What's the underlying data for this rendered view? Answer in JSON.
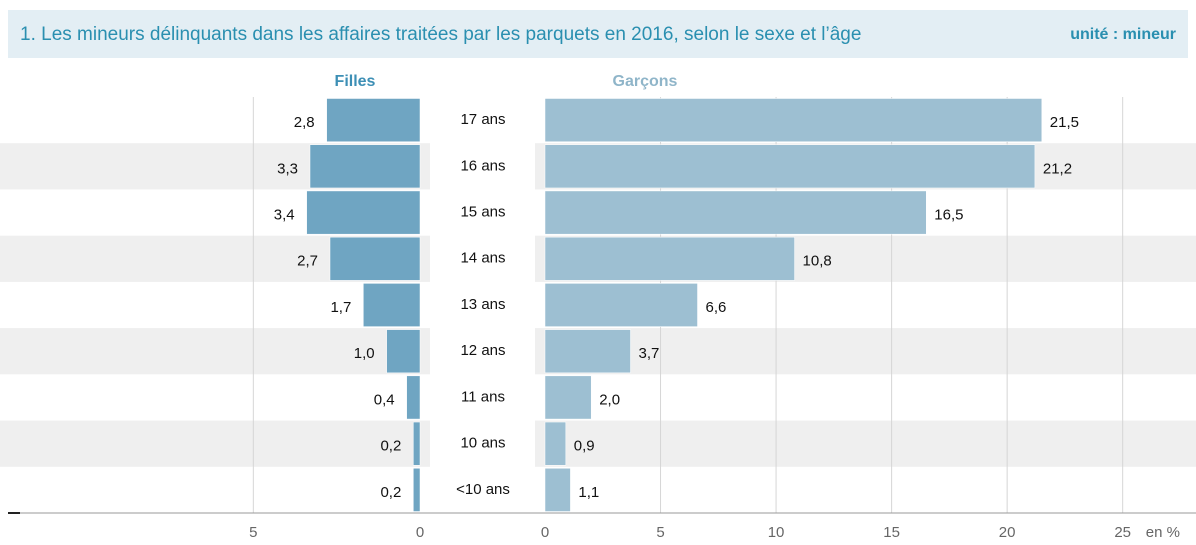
{
  "chart_data": {
    "type": "pyramid",
    "title": "1. Les mineurs délinquants dans les affaires traitées par les parquets en 2016, selon le sexe et l’âge",
    "unit_label": "unité : mineur",
    "x_unit": "en %",
    "categories": [
      "17 ans",
      "16 ans",
      "15 ans",
      "14 ans",
      "13 ans",
      "12 ans",
      "11 ans",
      "10 ans",
      "<10 ans"
    ],
    "series": [
      {
        "name": "Filles",
        "color": "#6fa5c2",
        "side": "left",
        "values": [
          2.8,
          3.3,
          3.4,
          2.7,
          1.7,
          1.0,
          0.4,
          0.2,
          0.2
        ],
        "value_labels": [
          "2,8",
          "3,3",
          "3,4",
          "2,7",
          "1,7",
          "1,0",
          "0,4",
          "0,2",
          "0,2"
        ],
        "xlim": [
          0,
          12.3
        ],
        "xticks": [
          5,
          0
        ]
      },
      {
        "name": "Garçons",
        "color": "#9dbfd2",
        "side": "right",
        "values": [
          21.5,
          21.2,
          16.5,
          10.8,
          6.6,
          3.7,
          2.0,
          0.9,
          1.1
        ],
        "value_labels": [
          "21,5",
          "21,2",
          "16,5",
          "10,8",
          "6,6",
          "3,7",
          "2,0",
          "0,9",
          "1,1"
        ],
        "xlim": [
          0,
          28
        ],
        "xticks": [
          0,
          5,
          10,
          15,
          20,
          25
        ]
      }
    ],
    "grid": true
  }
}
